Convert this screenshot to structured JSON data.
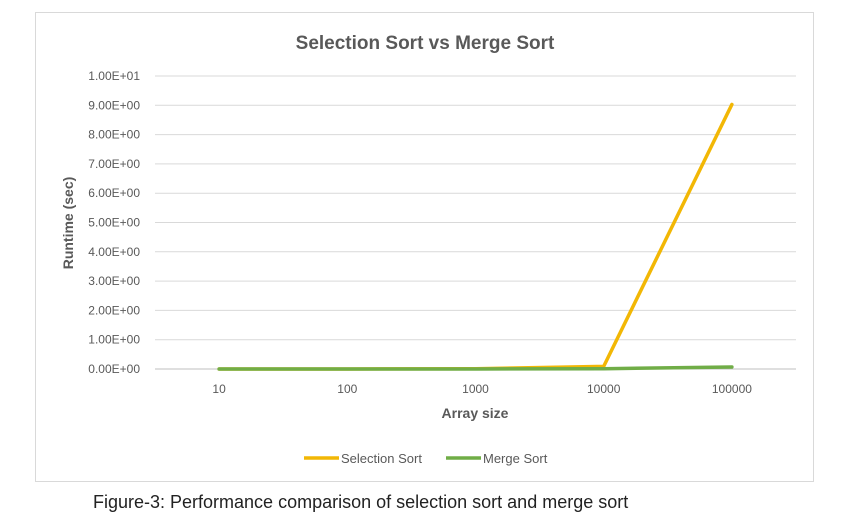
{
  "caption": "Figure-3: Performance comparison of selection sort and merge sort",
  "chart_data": {
    "type": "line",
    "title": "Selection Sort vs Merge Sort",
    "xlabel": "Array size",
    "ylabel": "Runtime (sec)",
    "categories": [
      "10",
      "100",
      "1000",
      "10000",
      "100000"
    ],
    "ylim": [
      0,
      10
    ],
    "ytick_values": [
      0,
      1,
      2,
      3,
      4,
      5,
      6,
      7,
      8,
      9,
      10
    ],
    "ytick_labels": [
      "0.00E+00",
      "1.00E+00",
      "2.00E+00",
      "3.00E+00",
      "4.00E+00",
      "5.00E+00",
      "6.00E+00",
      "7.00E+00",
      "8.00E+00",
      "9.00E+00",
      "1.00E+01"
    ],
    "grid": true,
    "legend_position": "bottom",
    "series": [
      {
        "name": "Selection Sort",
        "color": "#f2b705",
        "values": [
          0.0,
          0.0,
          0.01,
          0.09,
          9.03
        ]
      },
      {
        "name": "Merge Sort",
        "color": "#70ad47",
        "values": [
          0.0,
          0.0,
          0.0,
          0.01,
          0.07
        ]
      }
    ]
  }
}
